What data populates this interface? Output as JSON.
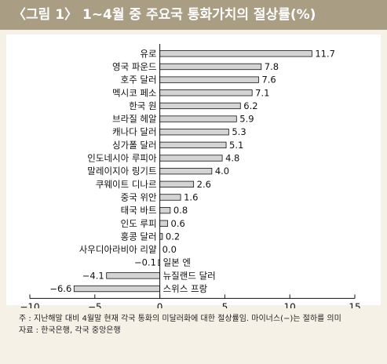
{
  "title": "〈그림 1〉 1~4월 중 주요국 통화가치의 절상률(%)",
  "chart_data": {
    "type": "bar",
    "orientation": "horizontal",
    "categories": [
      "유로",
      "영국 파운드",
      "호주 달러",
      "멕시코 페소",
      "한국 원",
      "브라질 헤알",
      "캐나다 달러",
      "싱가폴 달러",
      "인도네시아 루피아",
      "말레이지아 링기트",
      "쿠웨이트 디나르",
      "중국 위안",
      "태국 바트",
      "인도 루피",
      "홍콩 달러",
      "사우디아라비아 리얄",
      "일본 엔",
      "뉴질랜드 달러",
      "스위스 프랑"
    ],
    "values": [
      11.7,
      7.8,
      7.6,
      7.1,
      6.2,
      5.9,
      5.3,
      5.1,
      4.8,
      4.0,
      2.6,
      1.6,
      0.8,
      0.6,
      0.2,
      0.0,
      -0.1,
      -4.1,
      -6.6
    ],
    "value_labels": [
      "11.7",
      "7.8",
      "7.6",
      "7.1",
      "6.2",
      "5.9",
      "5.3",
      "5.1",
      "4.8",
      "4.0",
      "2.6",
      "1.6",
      "0.8",
      "0.6",
      "0.2",
      "0.0",
      "−0.1",
      "−4.1",
      "−6.6"
    ],
    "xlim": [
      -10,
      15
    ],
    "xticks": [
      -10,
      -5,
      0,
      5,
      10,
      15
    ],
    "xtick_labels": [
      "−10",
      "−5",
      "0",
      "5",
      "10",
      "15"
    ],
    "grid": false,
    "bar_color": "#d4d4d4"
  },
  "notes": {
    "note_label": "주 : ",
    "note_text": "지난해말 대비 4월말 현재 각국 통화의 미달러화에 대한 절상률임. 마이너스(−)는 절하를 의미",
    "source_label": "자료 : ",
    "source_text": "한국은행, 각국 중앙은행"
  }
}
